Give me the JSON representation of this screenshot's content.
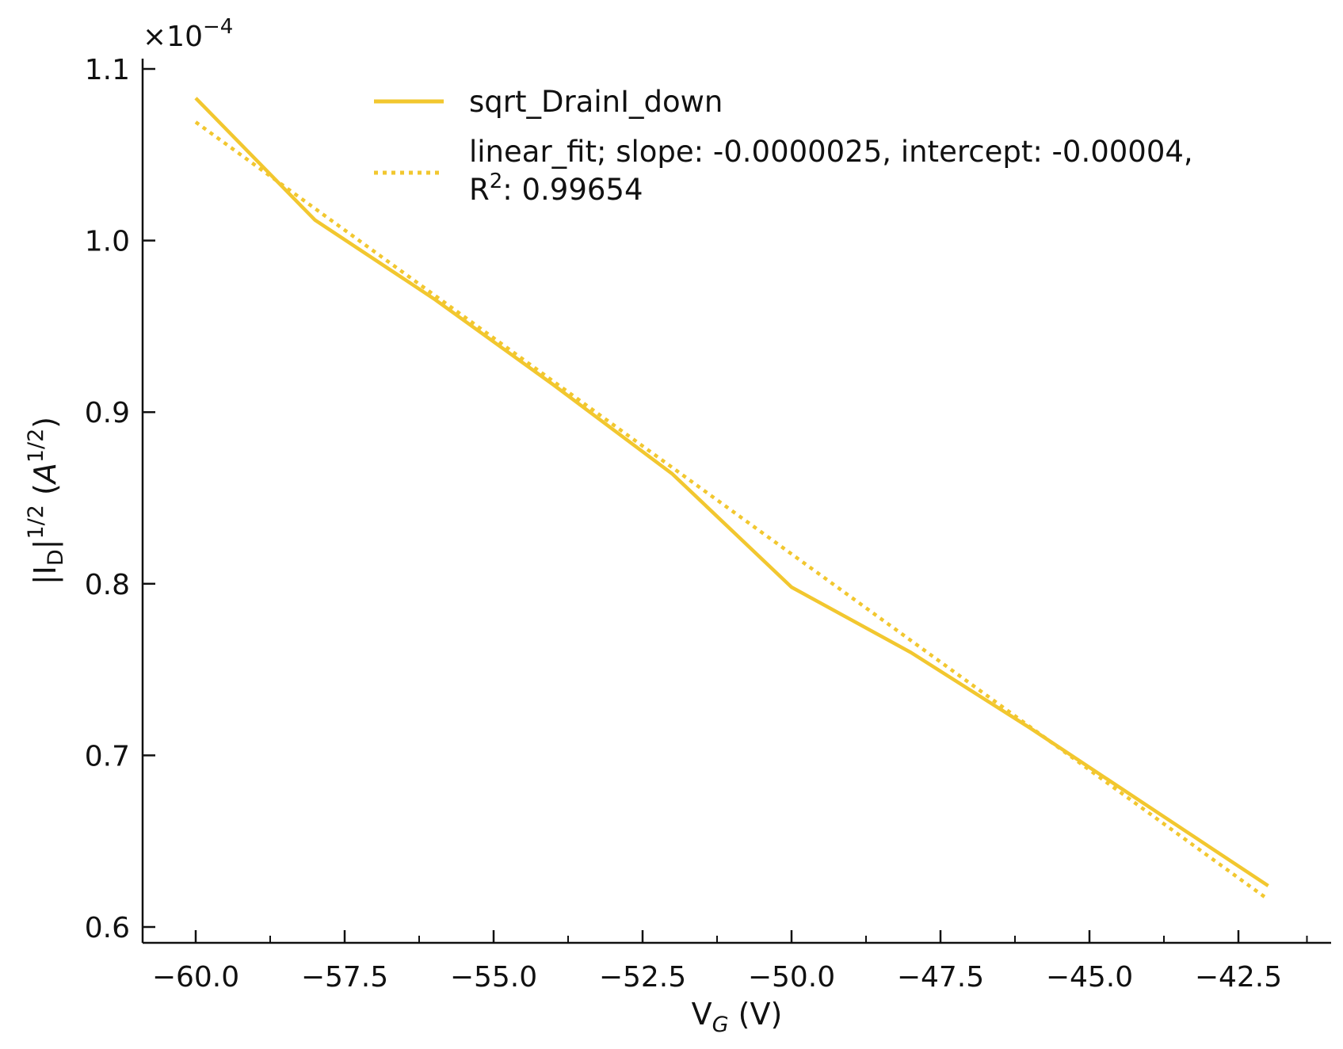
{
  "chart_data": {
    "type": "line",
    "title": "",
    "xlabel": {
      "main": "V",
      "sub": "G",
      "unit": " (V)"
    },
    "ylabel": {
      "bar1": "|I",
      "sub": "D",
      "bar2": "|",
      "sup": "1/2",
      "unit_pre": " (",
      "unit_var": "A",
      "unit_sup": "1/2",
      "unit_post": ")"
    },
    "y_scale_exponent": {
      "prefix": "×10",
      "power": "−4"
    },
    "xlim": [
      -60.9,
      -41.3
    ],
    "ylim": [
      0.59,
      1.105
    ],
    "xticks": [
      -60.0,
      -57.5,
      -55.0,
      -52.5,
      -50.0,
      -47.5,
      -45.0,
      -42.5
    ],
    "xtick_labels": [
      "−60.0",
      "−57.5",
      "−55.0",
      "−52.5",
      "−50.0",
      "−47.5",
      "−45.0",
      "−42.5"
    ],
    "x_minor_ticks": [
      -58.75,
      -56.25,
      -53.75,
      -51.25,
      -48.75,
      -46.25,
      -43.75,
      -41.35
    ],
    "yticks": [
      0.6,
      0.7,
      0.8,
      0.9,
      1.0,
      1.1
    ],
    "ytick_labels": [
      "0.6",
      "0.7",
      "0.8",
      "0.9",
      "1.0",
      "1.1"
    ],
    "series": [
      {
        "name": "sqrt_DrainI_down",
        "style": "solid",
        "color": "#f2c72f",
        "x": [
          -60,
          -58,
          -56,
          -54,
          -52,
          -50,
          -48,
          -46,
          -44,
          -42
        ],
        "y": [
          1.083,
          1.012,
          0.966,
          0.916,
          0.864,
          0.798,
          0.76,
          0.716,
          0.67,
          0.624
        ]
      },
      {
        "name": "linear_fit",
        "legend_lines": [
          "linear_fit; slope: -0.0000025, intercept: -0.00004,",
          "R",
          "2",
          ": 0.99654"
        ],
        "style": "dotted",
        "color": "#f2c72f",
        "x": [
          -60,
          -42
        ],
        "y": [
          1.069,
          0.616
        ]
      }
    ],
    "legend_position": "top-center",
    "grid": false
  }
}
